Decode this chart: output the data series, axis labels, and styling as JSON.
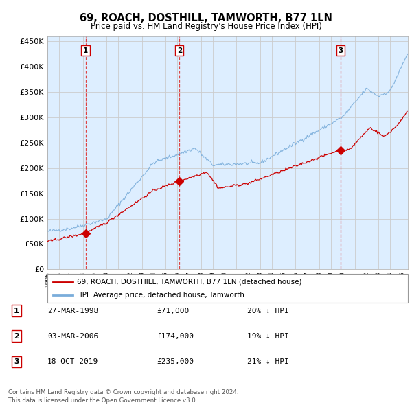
{
  "title": "69, ROACH, DOSTHILL, TAMWORTH, B77 1LN",
  "subtitle": "Price paid vs. HM Land Registry's House Price Index (HPI)",
  "legend_line1": "69, ROACH, DOSTHILL, TAMWORTH, B77 1LN (detached house)",
  "legend_line2": "HPI: Average price, detached house, Tamworth",
  "sale_year_floats": [
    1998.23,
    2006.17,
    2019.8
  ],
  "sale_prices": [
    71000,
    174000,
    235000
  ],
  "sale_labels": [
    "1",
    "2",
    "3"
  ],
  "table_rows": [
    [
      "1",
      "27-MAR-1998",
      "£71,000",
      "20% ↓ HPI"
    ],
    [
      "2",
      "03-MAR-2006",
      "£174,000",
      "19% ↓ HPI"
    ],
    [
      "3",
      "18-OCT-2019",
      "£235,000",
      "21% ↓ HPI"
    ]
  ],
  "footer": "Contains HM Land Registry data © Crown copyright and database right 2024.\nThis data is licensed under the Open Government Licence v3.0.",
  "red_color": "#cc0000",
  "blue_color": "#7aadda",
  "bg_color": "#ddeeff",
  "dashed_color": "#dd4444",
  "yticks": [
    0,
    50000,
    100000,
    150000,
    200000,
    250000,
    300000,
    350000,
    400000,
    450000
  ],
  "xmin": 1995.0,
  "xmax": 2025.5,
  "ymin": 0,
  "ymax": 460000
}
